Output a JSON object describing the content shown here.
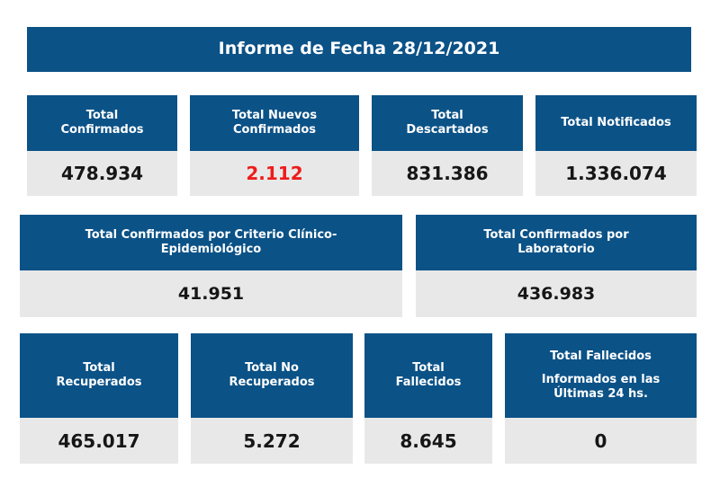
{
  "report": {
    "title": "Informe de Fecha 28/12/2021"
  },
  "row1": [
    {
      "label": "Total\nConfirmados",
      "value": "478.934"
    },
    {
      "label": "Total Nuevos\nConfirmados",
      "value": "2.112"
    },
    {
      "label": "Total\nDescartados",
      "value": "831.386"
    },
    {
      "label": "Total Notificados",
      "value": "1.336.074"
    }
  ],
  "row2": [
    {
      "label": "Total Confirmados por Criterio Clínico-\nEpidemiológico",
      "value": "41.951"
    },
    {
      "label": "Total Confirmados por\nLaboratorio",
      "value": "436.983"
    }
  ],
  "row3": [
    {
      "label": "Total\nRecuperados",
      "value": "465.017"
    },
    {
      "label": "Total No\nRecuperados",
      "value": "5.272"
    },
    {
      "label": "Total\nFallecidos",
      "value": "8.645"
    },
    {
      "label_line1": "Total Fallecidos",
      "label_line2": "Informados en las\nÚltimas 24 hs.",
      "value": "0"
    }
  ],
  "colors": {
    "header_bg": "#0b5287",
    "value_bg": "#e8e8e8",
    "highlight": "#ee1c1c"
  }
}
